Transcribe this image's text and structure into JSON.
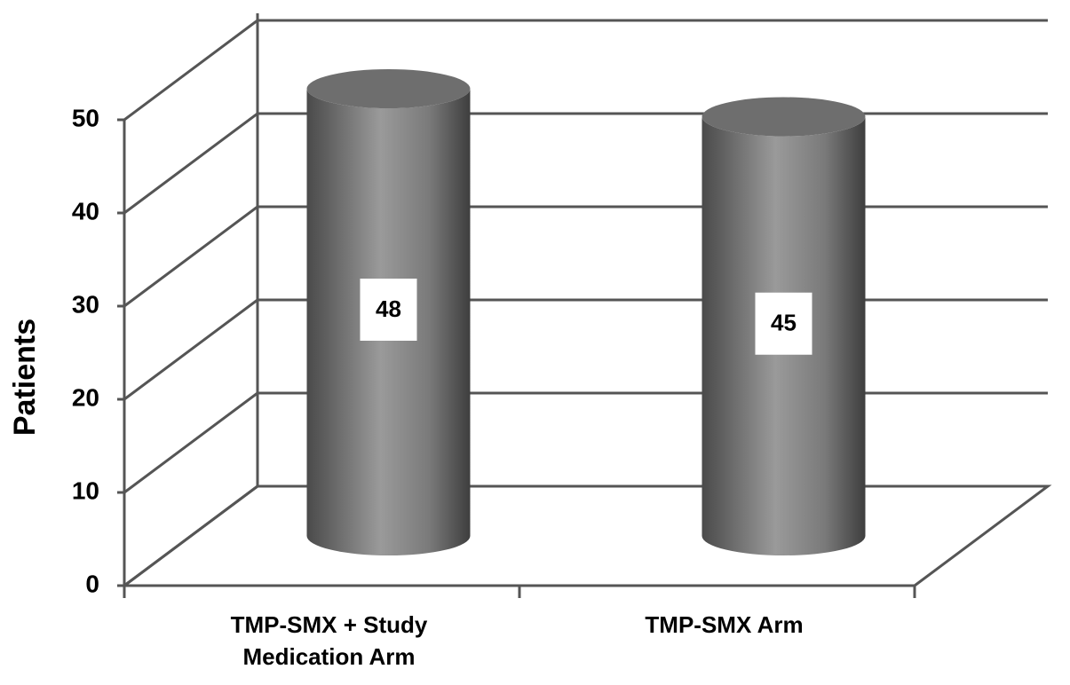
{
  "chart_data": {
    "type": "bar3d",
    "y_label": "Patients",
    "categories": [
      "TMP-SMX + Study Medication Arm",
      "TMP-SMX Arm"
    ],
    "values": [
      48,
      45
    ],
    "color": "#6e6e6e",
    "ylim": [
      0,
      50
    ],
    "yticks": [
      0,
      10,
      20,
      30,
      40,
      50
    ],
    "grid": true
  }
}
